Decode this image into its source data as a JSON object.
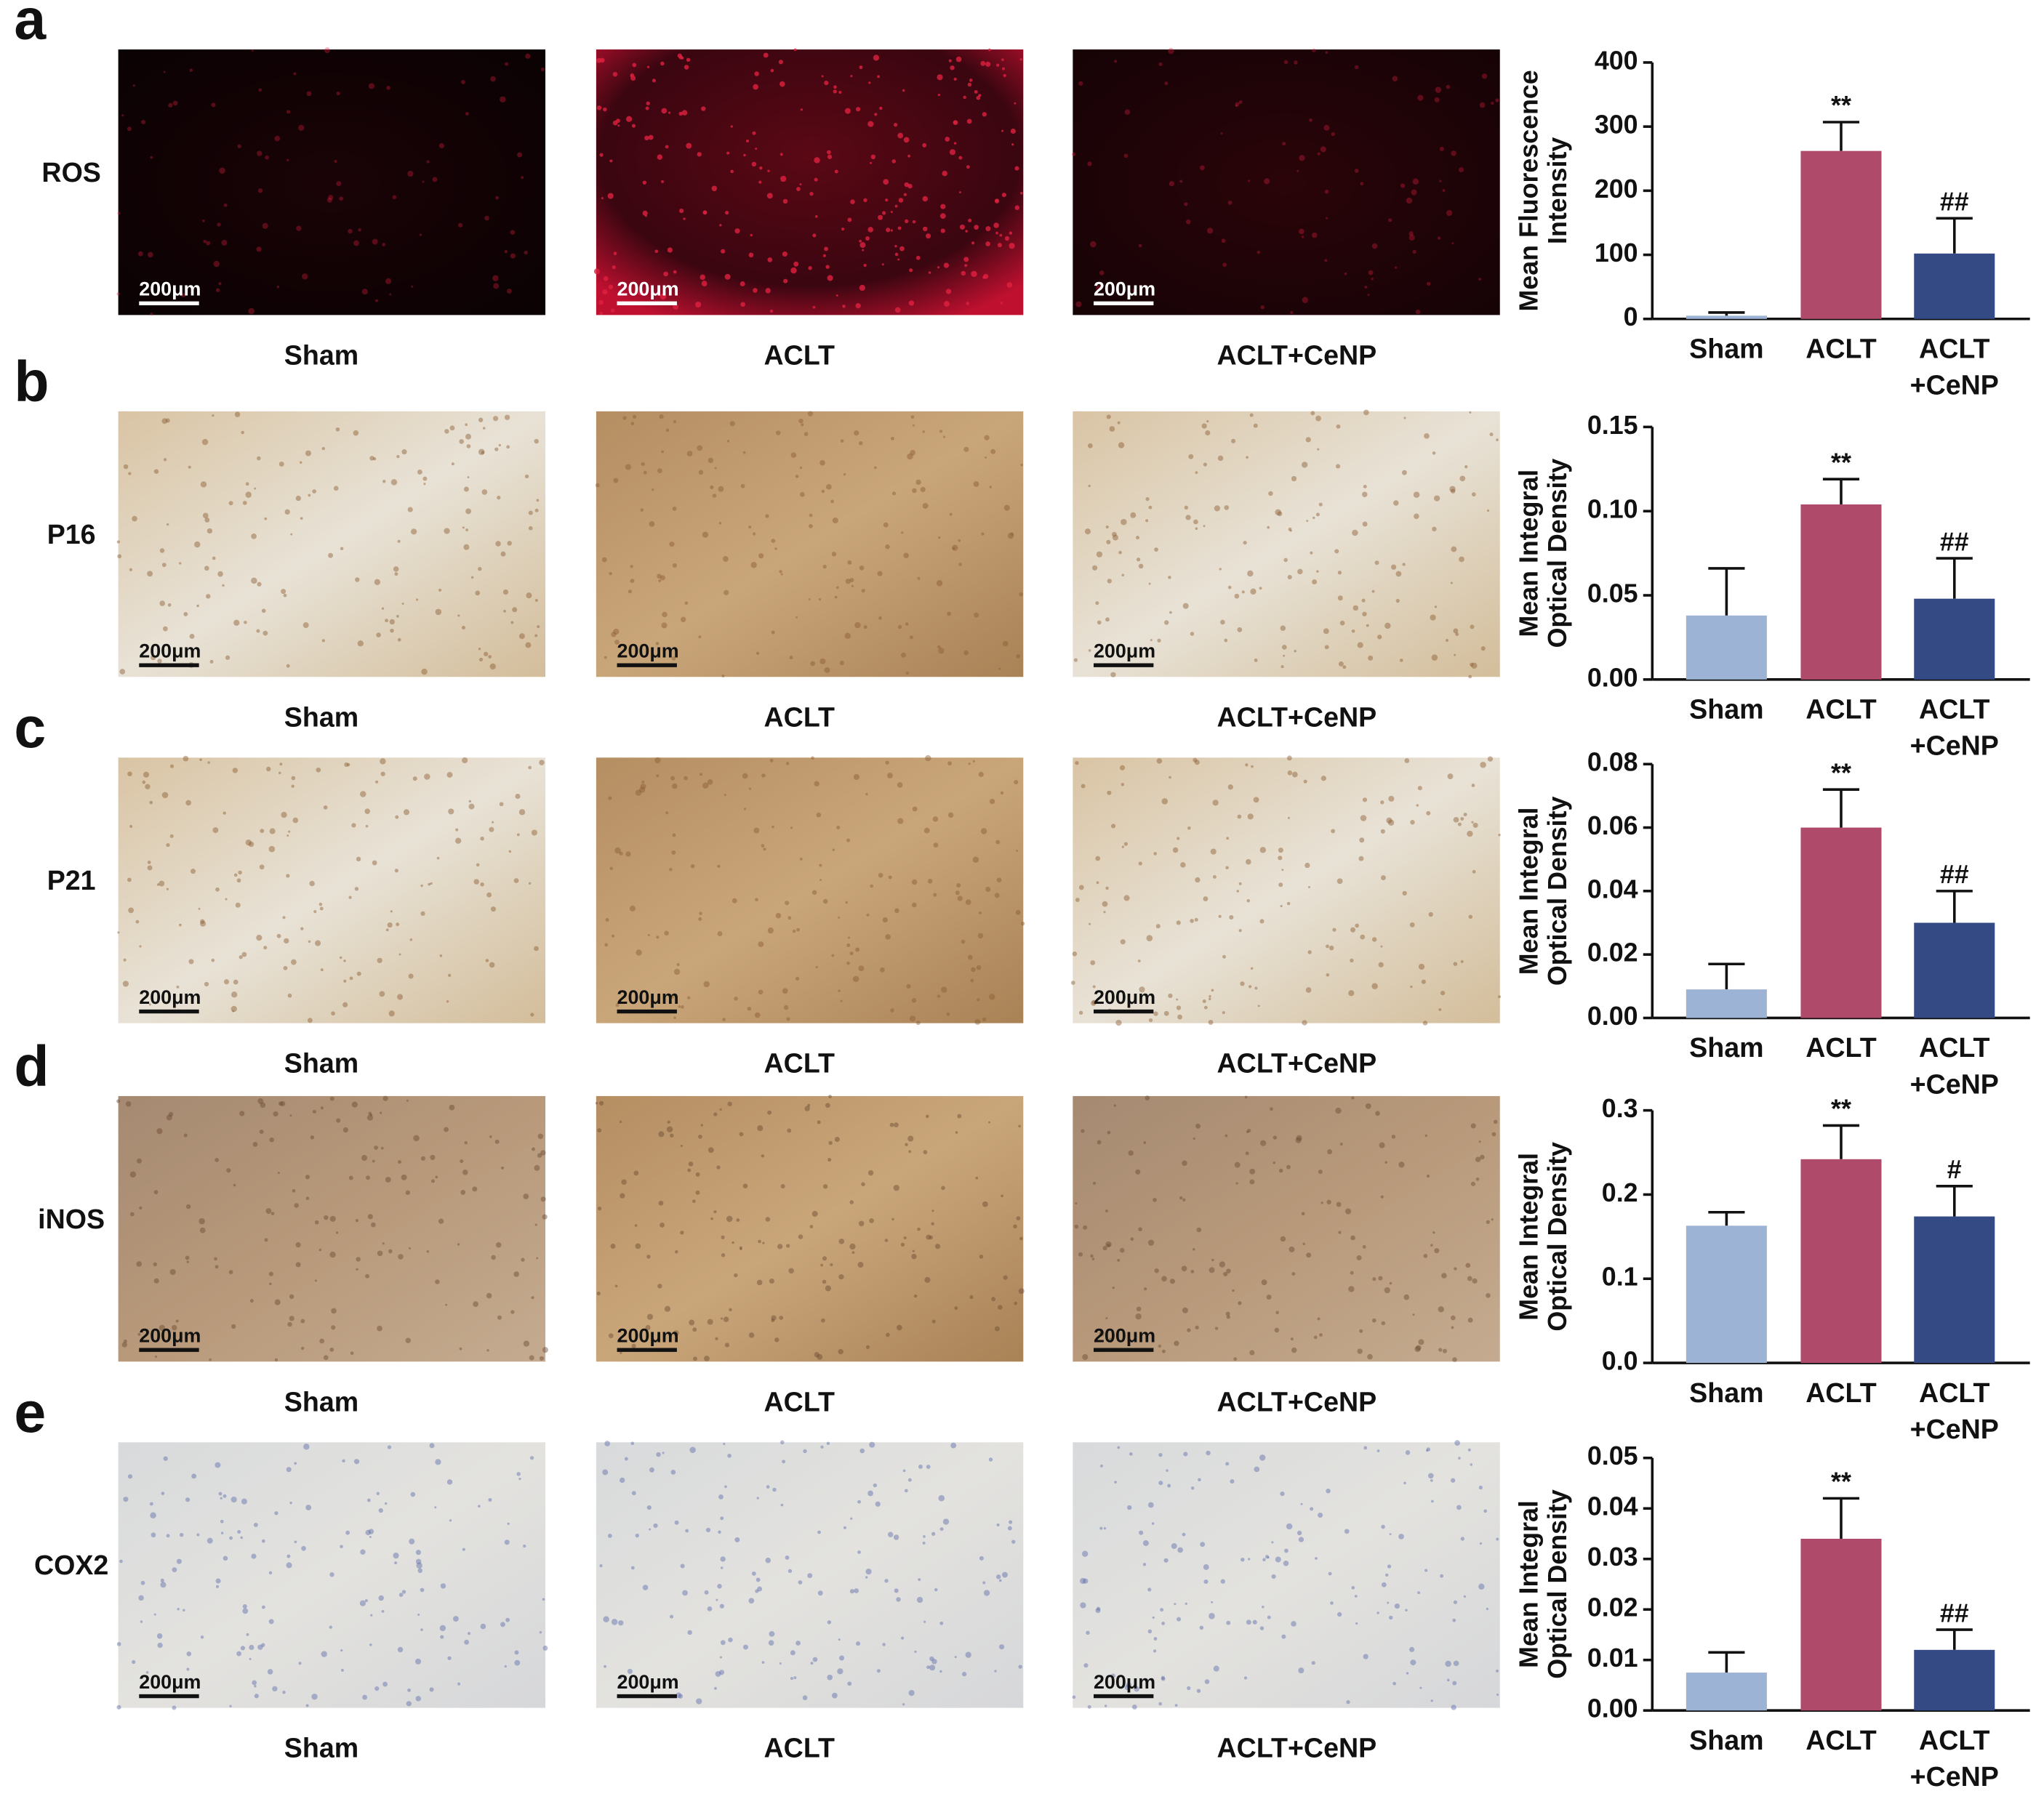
{
  "panels": [
    {
      "letter": "a",
      "stain": "ROS",
      "captions": [
        "Sham",
        "ACLT",
        "ACLT+CeNP"
      ],
      "scale_bar": "200μm"
    },
    {
      "letter": "b",
      "stain": "P16",
      "captions": [
        "Sham",
        "ACLT",
        "ACLT+CeNP"
      ],
      "scale_bar": "200μm"
    },
    {
      "letter": "c",
      "stain": "P21",
      "captions": [
        "Sham",
        "ACLT",
        "ACLT+CeNP"
      ],
      "scale_bar": "200μm"
    },
    {
      "letter": "d",
      "stain": "iNOS",
      "captions": [
        "Sham",
        "ACLT",
        "ACLT+CeNP"
      ],
      "scale_bar": "200μm"
    },
    {
      "letter": "e",
      "stain": "COX2",
      "captions": [
        "Sham",
        "ACLT",
        "ACLT+CeNP"
      ],
      "scale_bar": "200μm"
    }
  ],
  "chart_data": [
    {
      "type": "bar",
      "y_label": [
        "Mean Fluorescence",
        "Intensity"
      ],
      "categories": [
        "Sham",
        "ACLT",
        "ACLT +CeNP"
      ],
      "values": [
        5,
        262,
        102
      ],
      "errors": [
        5,
        45,
        55
      ],
      "annotations": [
        null,
        "**",
        "##"
      ],
      "colors": [
        "#9db3d6",
        "#b04a6a",
        "#344a84"
      ],
      "ylim": [
        0,
        400
      ],
      "yticks": [
        0,
        100,
        200,
        300,
        400
      ]
    },
    {
      "type": "bar",
      "y_label": [
        "Mean Integral",
        "Optical Density"
      ],
      "categories": [
        "Sham",
        "ACLT",
        "ACLT +CeNP"
      ],
      "values": [
        0.038,
        0.104,
        0.048
      ],
      "errors": [
        0.028,
        0.015,
        0.024
      ],
      "annotations": [
        null,
        "**",
        "##"
      ],
      "colors": [
        "#9db3d6",
        "#b04a6a",
        "#344a84"
      ],
      "ylim": [
        0,
        0.15
      ],
      "yticks": [
        {
          "value": 0,
          "label": "0.00"
        },
        0.05,
        {
          "value": 0.1,
          "label": "0.10"
        },
        0.15
      ]
    },
    {
      "type": "bar",
      "y_label": [
        "Mean Integral",
        "Optical Density"
      ],
      "categories": [
        "Sham",
        "ACLT",
        "ACLT +CeNP"
      ],
      "values": [
        0.009,
        0.06,
        0.03
      ],
      "errors": [
        0.008,
        0.012,
        0.01
      ],
      "annotations": [
        null,
        "**",
        "##"
      ],
      "colors": [
        "#9db3d6",
        "#b04a6a",
        "#344a84"
      ],
      "ylim": [
        0,
        0.08
      ],
      "yticks": [
        {
          "value": 0,
          "label": "0.00"
        },
        0.02,
        0.04,
        0.06,
        0.08
      ]
    },
    {
      "type": "bar",
      "y_label": [
        "Mean Integral",
        "Optical Density"
      ],
      "categories": [
        "Sham",
        "ACLT",
        "ACLT +CeNP"
      ],
      "values": [
        0.163,
        0.242,
        0.174
      ],
      "errors": [
        0.016,
        0.04,
        0.036
      ],
      "annotations": [
        null,
        "**",
        "#"
      ],
      "colors": [
        "#9db3d6",
        "#b04a6a",
        "#344a84"
      ],
      "ylim": [
        0,
        0.3
      ],
      "yticks": [
        {
          "value": 0,
          "label": "0.0"
        },
        0.1,
        0.2,
        0.3
      ]
    },
    {
      "type": "bar",
      "y_label": [
        "Mean Integral",
        "Optical Density"
      ],
      "categories": [
        "Sham",
        "ACLT",
        "ACLT +CeNP"
      ],
      "values": [
        0.0075,
        0.034,
        0.012
      ],
      "errors": [
        0.004,
        0.008,
        0.004
      ],
      "annotations": [
        null,
        "**",
        "##"
      ],
      "colors": [
        "#9db3d6",
        "#b04a6a",
        "#344a84"
      ],
      "ylim": [
        0,
        0.05
      ],
      "yticks": [
        {
          "value": 0,
          "label": "0.00"
        },
        0.01,
        0.02,
        0.03,
        0.04,
        0.05
      ]
    }
  ]
}
